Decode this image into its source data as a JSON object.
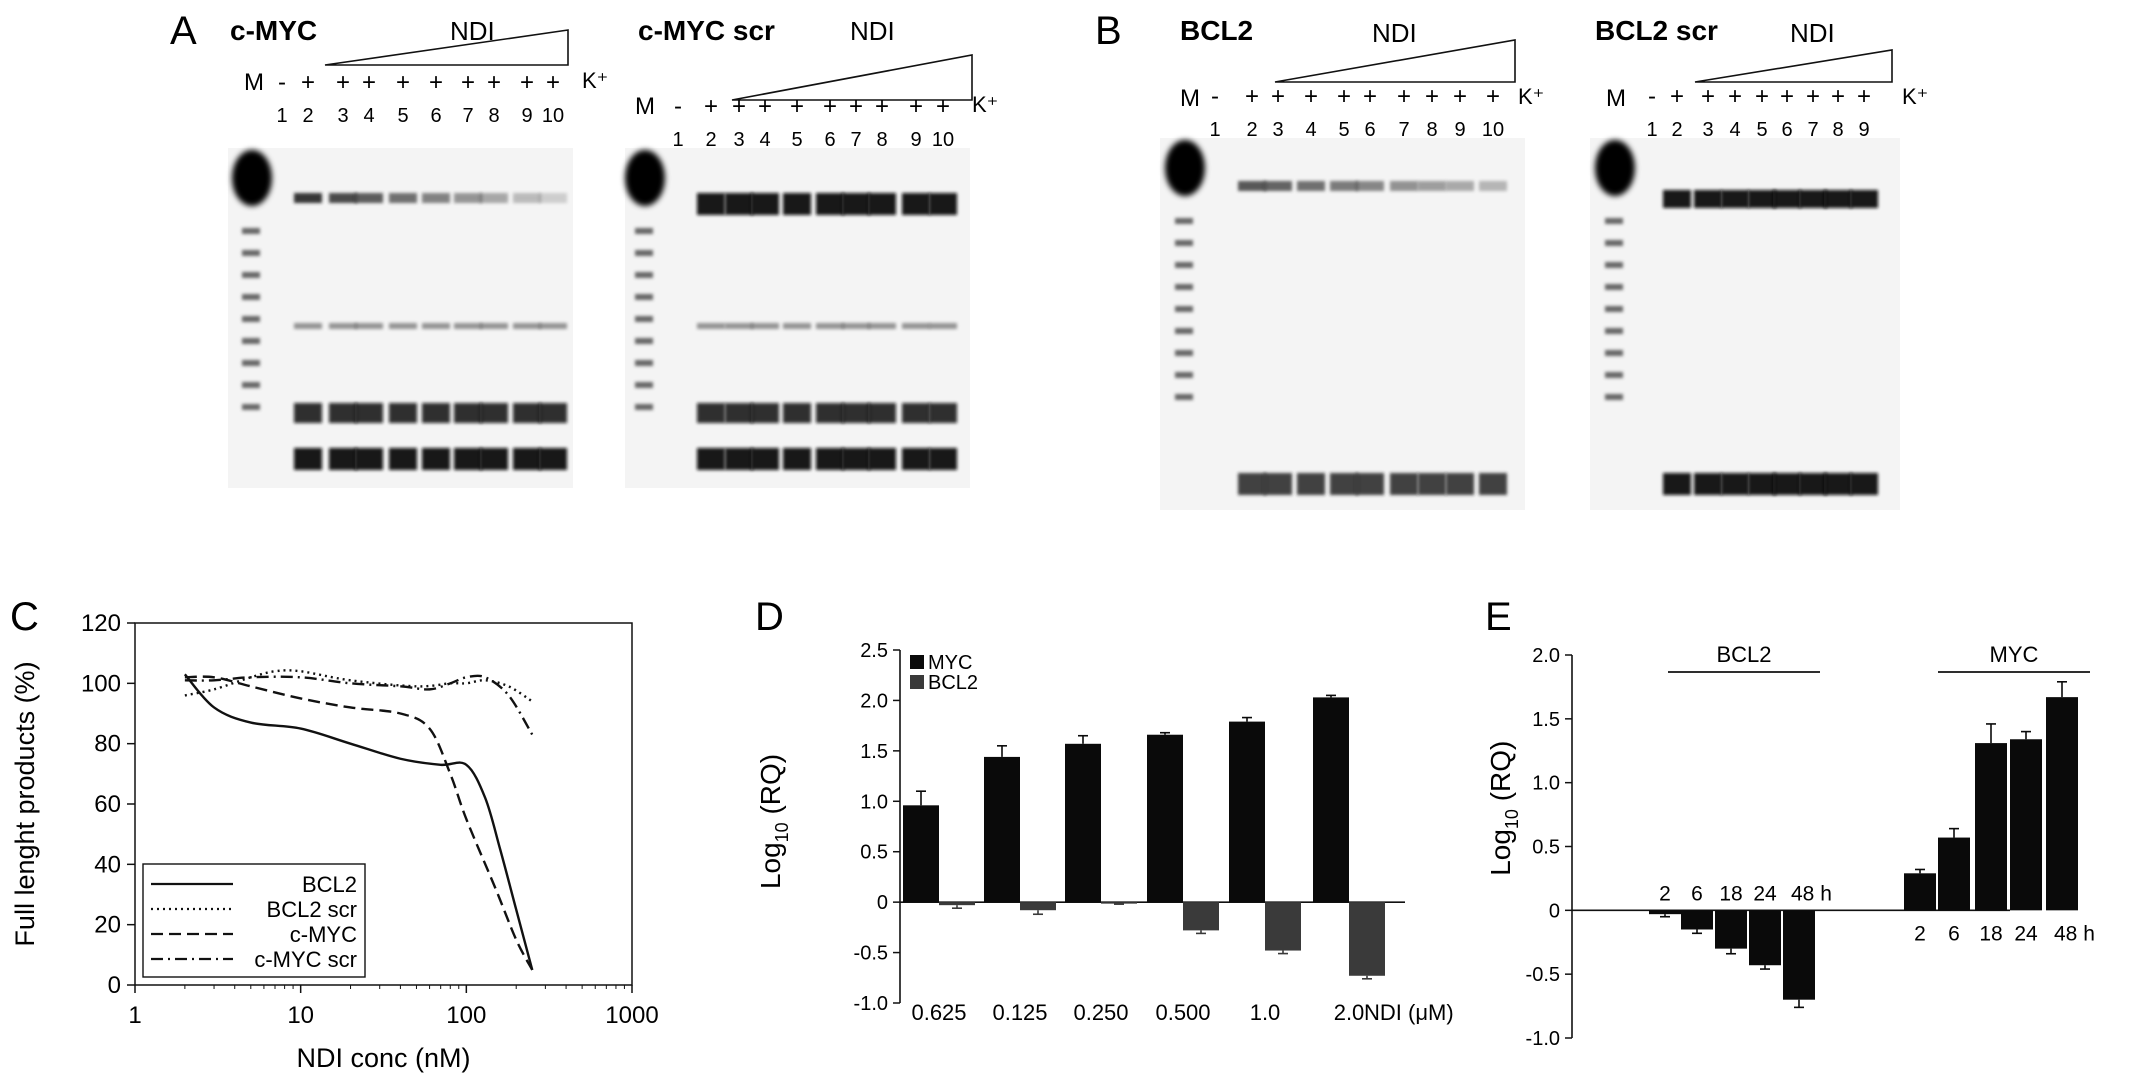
{
  "panels": {
    "A": {
      "letter": "A",
      "gels": [
        {
          "title": "c-MYC",
          "ndi_label": "NDI",
          "marker_label": "M",
          "minus_label": "-",
          "plus_label": "+",
          "k_label": "K⁺",
          "lane_numbers": [
            "1",
            "2",
            "3",
            "4",
            "5",
            "6",
            "7",
            "8",
            "9",
            "10"
          ]
        },
        {
          "title": "c-MYC scr",
          "ndi_label": "NDI",
          "marker_label": "M",
          "minus_label": "-",
          "plus_label": "+",
          "k_label": "K⁺",
          "lane_numbers": [
            "1",
            "2",
            "3",
            "4",
            "5",
            "6",
            "7",
            "8",
            "9",
            "10"
          ]
        }
      ]
    },
    "B": {
      "letter": "B",
      "gels": [
        {
          "title": "BCL2",
          "ndi_label": "NDI",
          "marker_label": "M",
          "minus_label": "-",
          "plus_label": "+",
          "k_label": "K⁺",
          "lane_numbers": [
            "1",
            "2",
            "3",
            "4",
            "5",
            "6",
            "7",
            "8",
            "9",
            "10"
          ]
        },
        {
          "title": "BCL2 scr",
          "ndi_label": "NDI",
          "marker_label": "M",
          "minus_label": "-",
          "plus_label": "+",
          "k_label": "K⁺",
          "lane_numbers": [
            "1",
            "2",
            "3",
            "4",
            "5",
            "6",
            "7",
            "8",
            "9"
          ]
        }
      ]
    },
    "C": {
      "letter": "C"
    },
    "D": {
      "letter": "D"
    },
    "E": {
      "letter": "E"
    }
  },
  "chart_data": [
    {
      "panel": "C",
      "type": "line",
      "xlabel": "NDI conc (nM)",
      "ylabel": "Full lenght products (%)",
      "xscale": "log",
      "xlim": [
        1,
        1000
      ],
      "ylim": [
        0,
        120
      ],
      "xticks": [
        "1",
        "10",
        "100",
        "1000"
      ],
      "yticks": [
        "0",
        "20",
        "40",
        "60",
        "80",
        "100",
        "120"
      ],
      "legend": "bottom-left",
      "series": [
        {
          "name": "BCL2",
          "style": "solid",
          "x": [
            2,
            3,
            5,
            10,
            20,
            40,
            70,
            100,
            130,
            160,
            200,
            250
          ],
          "y": [
            103,
            92,
            87,
            85,
            80,
            75,
            73,
            73,
            62,
            45,
            25,
            5
          ]
        },
        {
          "name": "BCL2 scr",
          "style": "dotted",
          "x": [
            2,
            3,
            5,
            7,
            10,
            20,
            50,
            80,
            100,
            130,
            180,
            250
          ],
          "y": [
            96,
            98,
            102,
            104,
            104,
            101,
            99,
            100,
            100,
            101,
            99,
            94
          ]
        },
        {
          "name": "c-MYC",
          "style": "dashed",
          "x": [
            2,
            3,
            5,
            10,
            20,
            40,
            60,
            80,
            100,
            150,
            200,
            250
          ],
          "y": [
            102,
            102,
            99,
            95,
            92,
            90,
            85,
            70,
            55,
            32,
            15,
            5
          ]
        },
        {
          "name": "c-MYC scr",
          "style": "dashdot",
          "x": [
            2,
            3,
            5,
            10,
            20,
            40,
            60,
            80,
            100,
            130,
            180,
            250
          ],
          "y": [
            101,
            101,
            102,
            102,
            100,
            99,
            98,
            100,
            102,
            102,
            96,
            83
          ]
        }
      ]
    },
    {
      "panel": "D",
      "type": "bar",
      "ylabel_main": "Log",
      "ylabel_sub": "10",
      "ylabel_tail": "(RQ)",
      "categories": [
        "0.625",
        "0.125",
        "0.250",
        "0.500",
        "1.0",
        "2.0"
      ],
      "x_unit_label": "NDI (μM)",
      "ylim": [
        -1.0,
        2.5
      ],
      "yticks": [
        "2.5",
        "2.0",
        "1.5",
        "1.0",
        "0.5",
        "0",
        "-0.5",
        "-1.0"
      ],
      "legend": "top-left",
      "series": [
        {
          "name": "MYC",
          "color": "#0a0a0a",
          "values": [
            0.96,
            1.44,
            1.57,
            1.66,
            1.79,
            2.03
          ],
          "errors": [
            0.14,
            0.11,
            0.08,
            0.02,
            0.04,
            0.02
          ]
        },
        {
          "name": "BCL2",
          "color": "#3a3a3a",
          "values": [
            -0.03,
            -0.08,
            -0.01,
            -0.28,
            -0.48,
            -0.73
          ],
          "errors": [
            0.03,
            0.04,
            0.01,
            0.03,
            0.03,
            0.03
          ]
        }
      ]
    },
    {
      "panel": "E",
      "type": "bar",
      "ylabel_main": "Log",
      "ylabel_sub": "10",
      "ylabel_tail": "(RQ)",
      "ylim": [
        -1.0,
        2.0
      ],
      "yticks": [
        "2.0",
        "1.5",
        "1.0",
        "0.5",
        "0",
        "-0.5",
        "-1.0"
      ],
      "groups": [
        {
          "name": "BCL2",
          "categories": [
            "2",
            "6",
            "18",
            "24",
            "48 h"
          ],
          "values": [
            -0.03,
            -0.15,
            -0.3,
            -0.43,
            -0.7
          ],
          "errors": [
            0.02,
            0.03,
            0.04,
            0.03,
            0.06
          ]
        },
        {
          "name": "MYC",
          "categories": [
            "2",
            "6",
            "18",
            "24",
            "48 h"
          ],
          "values": [
            0.29,
            0.57,
            1.31,
            1.34,
            1.67
          ],
          "errors": [
            0.03,
            0.07,
            0.15,
            0.06,
            0.12
          ]
        }
      ]
    }
  ]
}
